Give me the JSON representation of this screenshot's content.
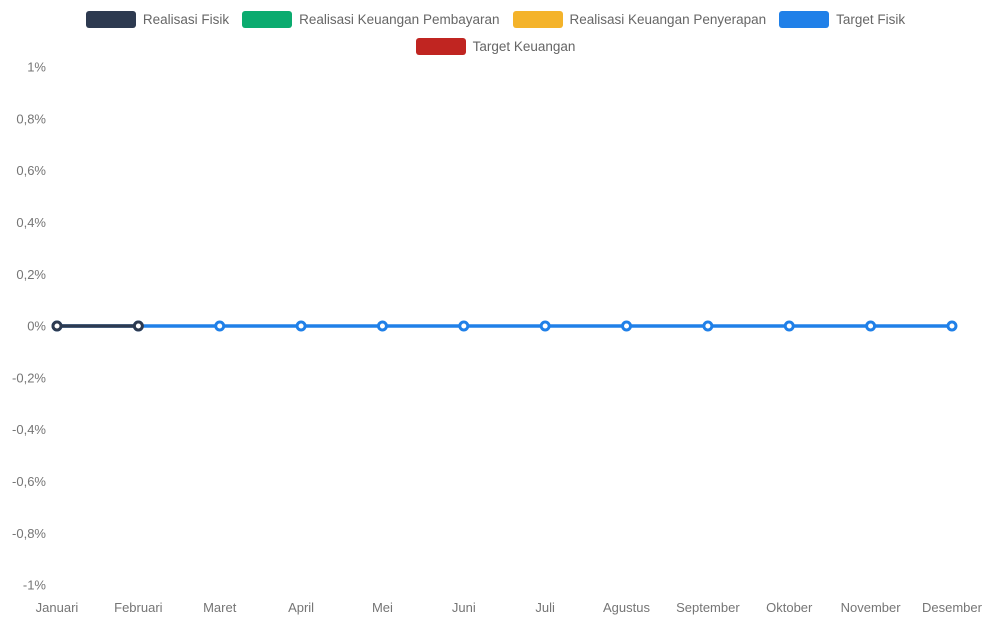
{
  "legend": {
    "items": [
      {
        "label": "Realisasi Fisik",
        "color": "#2d3a50"
      },
      {
        "label": "Realisasi Keuangan Pembayaran",
        "color": "#0bab6f"
      },
      {
        "label": "Realisasi Keuangan Penyerapan",
        "color": "#f4b32a"
      },
      {
        "label": "Target Fisik",
        "color": "#2080e8"
      },
      {
        "label": "Target Keuangan",
        "color": "#c02521"
      }
    ]
  },
  "chart_data": {
    "type": "line",
    "title": "",
    "xlabel": "",
    "ylabel": "",
    "categories": [
      "Januari",
      "Februari",
      "Maret",
      "April",
      "Mei",
      "Juni",
      "Juli",
      "Agustus",
      "September",
      "Oktober",
      "November",
      "Desember"
    ],
    "ylim": [
      -1,
      1
    ],
    "ytick_step": 0.2,
    "ytick_labels": [
      "1%",
      "0,8%",
      "0,6%",
      "0,4%",
      "0,2%",
      "0%",
      "-0,2%",
      "-0,4%",
      "-0,6%",
      "-0,8%",
      "-1%"
    ],
    "grid": false,
    "axis_lines": false,
    "legend_position": "top",
    "marker": "open-circle",
    "series": [
      {
        "name": "Realisasi Fisik",
        "color": "#2d3a50",
        "plotted": true,
        "x_start_index": 0,
        "values": [
          0,
          0
        ]
      },
      {
        "name": "Realisasi Keuangan Pembayaran",
        "color": "#0bab6f",
        "plotted": false,
        "x_start_index": 0,
        "values": []
      },
      {
        "name": "Realisasi Keuangan Penyerapan",
        "color": "#f4b32a",
        "plotted": false,
        "x_start_index": 0,
        "values": []
      },
      {
        "name": "Target Fisik",
        "color": "#2080e8",
        "plotted": true,
        "x_start_index": 0,
        "values": [
          0,
          0,
          0,
          0,
          0,
          0,
          0,
          0,
          0,
          0,
          0,
          0
        ]
      },
      {
        "name": "Target Keuangan",
        "color": "#c02521",
        "plotted": false,
        "x_start_index": 0,
        "values": []
      }
    ],
    "colors": {
      "axis_label": "#757575",
      "legend_label": "#666666",
      "background": "#ffffff",
      "marker_fill": "#ffffff"
    }
  }
}
